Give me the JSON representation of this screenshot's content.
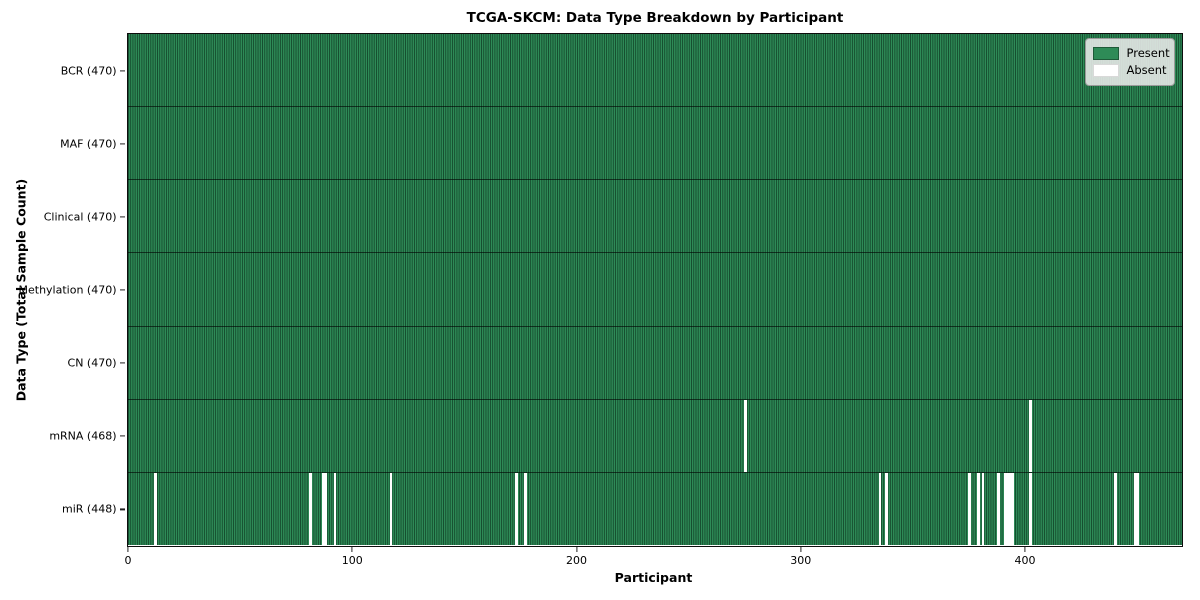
{
  "title": "TCGA-SKCM: Data Type Breakdown by Participant",
  "chart_data": {
    "type": "heatmap",
    "title": "TCGA-SKCM: Data Type Breakdown by Participant",
    "xlabel": "Participant",
    "ylabel": "Data Type (Total Sample Count)",
    "xlim": [
      0,
      470
    ],
    "n_participants": 470,
    "x_ticks": [
      "0",
      "100",
      "200",
      "300",
      "400"
    ],
    "x_tick_values": [
      0,
      100,
      200,
      300,
      400
    ],
    "grid": false,
    "legend_position": "upper right",
    "rows": [
      {
        "label": "BCR (470)",
        "present_count": 470,
        "absent_participants": []
      },
      {
        "label": "MAF (470)",
        "present_count": 470,
        "absent_participants": []
      },
      {
        "label": "Clinical (470)",
        "present_count": 470,
        "absent_participants": []
      },
      {
        "label": "Methylation (470)",
        "present_count": 470,
        "absent_participants": []
      },
      {
        "label": "CN (470)",
        "present_count": 470,
        "absent_participants": []
      },
      {
        "label": "mRNA (468)",
        "present_count": 468,
        "absent_participants": [
          275,
          402
        ]
      },
      {
        "label": "miR (448)",
        "present_count": 448,
        "absent_participants": [
          12,
          81,
          87,
          88,
          92,
          117,
          173,
          177,
          335,
          338,
          375,
          379,
          381,
          388,
          391,
          392,
          393,
          394,
          402,
          440,
          449,
          450
        ]
      }
    ],
    "legend": {
      "entries": [
        {
          "label": "Present",
          "color": "#2e8b57"
        },
        {
          "label": "Absent",
          "color": "#ffffff"
        }
      ]
    },
    "colors": {
      "present": "#2e8b57",
      "absent": "#ffffff",
      "bar_edge": "rgba(0,22,11,0.55)",
      "row_separator": "rgba(0,0,0,0.6)",
      "spine": "#0d0d0d"
    }
  }
}
